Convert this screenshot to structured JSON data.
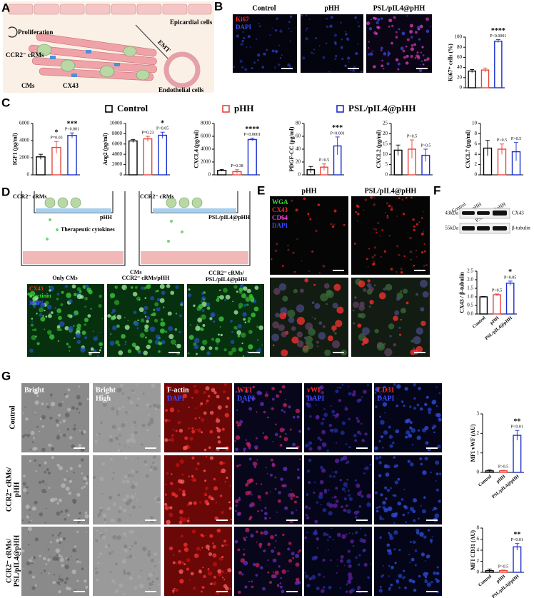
{
  "chart_data": [
    {
      "type": "bar",
      "ylabel": "Ki67⁺ cells (%)",
      "values": [
        33,
        35,
        92
      ],
      "errors": [
        3,
        4,
        3
      ],
      "colors": [
        "#000000",
        "#e8443a",
        "#1a2fd0"
      ],
      "ylim": [
        0,
        100
      ],
      "yticks": [
        0,
        20,
        40,
        60,
        80,
        100
      ],
      "stars": [
        null,
        null,
        "****"
      ],
      "p_labels": [
        null,
        null,
        "P<0.0001"
      ]
    },
    {
      "type": "bar",
      "ylabel": "IGF1 (pg/ml)",
      "values": [
        2100,
        3200,
        4600
      ],
      "errors": [
        300,
        700,
        300
      ],
      "colors": [
        "#000000",
        "#e8443a",
        "#1a2fd0"
      ],
      "ylim": [
        0,
        6000
      ],
      "yticks": [
        0,
        2000,
        4000,
        6000
      ],
      "stars": [
        null,
        "*",
        "***"
      ],
      "p_labels": [
        null,
        "P=0.03",
        "P<0.001"
      ]
    },
    {
      "type": "bar",
      "ylabel": "Ang2 (pg/ml)",
      "values": [
        6600,
        7000,
        7700
      ],
      "errors": [
        300,
        500,
        600
      ],
      "colors": [
        "#000000",
        "#e8443a",
        "#1a2fd0"
      ],
      "ylim": [
        0,
        10000
      ],
      "yticks": [
        0,
        2000,
        4000,
        6000,
        8000,
        10000
      ],
      "stars": [
        null,
        null,
        "*"
      ],
      "p_labels": [
        null,
        "P=0.23",
        "P<0.05"
      ]
    },
    {
      "type": "bar",
      "ylabel": "CXCL4 (pg/ml)",
      "values": [
        700,
        500,
        5500
      ],
      "errors": [
        150,
        300,
        200
      ],
      "colors": [
        "#000000",
        "#e8443a",
        "#1a2fd0"
      ],
      "ylim": [
        0,
        8000
      ],
      "yticks": [
        0,
        2000,
        4000,
        6000,
        8000
      ],
      "stars": [
        null,
        null,
        "****"
      ],
      "p_labels": [
        null,
        "P=0.38",
        "P<0.0001"
      ]
    },
    {
      "type": "bar",
      "ylabel": "PDGF-CC (pg/ml)",
      "values": [
        8,
        12,
        45
      ],
      "errors": [
        5,
        5,
        14
      ],
      "colors": [
        "#000000",
        "#e8443a",
        "#1a2fd0"
      ],
      "ylim": [
        0,
        80
      ],
      "yticks": [
        0,
        20,
        40,
        60,
        80
      ],
      "stars": [
        null,
        null,
        "***"
      ],
      "p_labels": [
        null,
        "P>0.5",
        "P<0.001"
      ]
    },
    {
      "type": "bar",
      "ylabel": "CXCL2 (pg/ml)",
      "values": [
        12,
        12.5,
        9.5
      ],
      "errors": [
        2.5,
        4.5,
        3
      ],
      "colors": [
        "#000000",
        "#e8443a",
        "#1a2fd0"
      ],
      "ylim": [
        0,
        25
      ],
      "yticks": [
        0,
        5,
        10,
        15,
        20,
        25
      ],
      "stars": [
        null,
        null,
        null
      ],
      "p_labels": [
        null,
        "P>0.5",
        "P>0.5"
      ]
    },
    {
      "type": "bar",
      "ylabel": "CXCL7 (pg/ml)",
      "values": [
        5.2,
        5,
        4.5
      ],
      "errors": [
        1.5,
        1,
        1.8
      ],
      "colors": [
        "#000000",
        "#e8443a",
        "#1a2fd0"
      ],
      "ylim": [
        0,
        10
      ],
      "yticks": [
        0,
        2,
        4,
        6,
        8,
        10
      ],
      "stars": [
        null,
        null,
        null
      ],
      "p_labels": [
        null,
        "P>0.5",
        "P>0.5"
      ]
    },
    {
      "type": "bar",
      "ylabel": "CX43 / β-tubulin",
      "categories": [
        "Control",
        "pHH",
        "PSL/pIL4@pHH"
      ],
      "values": [
        1.0,
        1.12,
        1.8
      ],
      "errors": [
        0.02,
        0.05,
        0.12
      ],
      "colors": [
        "#000000",
        "#e8443a",
        "#1a2fd0"
      ],
      "ylim": [
        0,
        2.5
      ],
      "yticks": [
        {
          "value": 0,
          "label": "0.0"
        },
        {
          "value": 0.5,
          "label": "0.5"
        },
        {
          "value": 1,
          "label": "1.0"
        },
        {
          "value": 1.5,
          "label": "1.5"
        },
        {
          "value": 2,
          "label": "2.0"
        },
        {
          "value": 2.5,
          "label": "2.5"
        }
      ],
      "stars": [
        null,
        null,
        "*"
      ],
      "p_labels": [
        null,
        "P>0.5",
        "P<0.05"
      ]
    },
    {
      "type": "bar",
      "ylabel": "MFI vWF (AU)",
      "categories": [
        "Control",
        "pHH",
        "PSL/pIL4@pHH"
      ],
      "values": [
        0.08,
        0.08,
        1.9
      ],
      "errors": [
        0.05,
        0.03,
        0.25
      ],
      "colors": [
        "#000000",
        "#e8443a",
        "#1a2fd0"
      ],
      "ylim": [
        0,
        3
      ],
      "yticks": [
        0,
        1,
        2,
        3
      ],
      "stars": [
        null,
        null,
        "**"
      ],
      "p_labels": [
        null,
        "P>0.5",
        "P<0.01"
      ]
    },
    {
      "type": "bar",
      "ylabel": "MFI CD31 (AU)",
      "categories": [
        "Control",
        "pHH",
        "PSL/pIL4@pHH"
      ],
      "values": [
        0.3,
        0.3,
        4.6
      ],
      "errors": [
        0.3,
        0.1,
        0.6
      ],
      "colors": [
        "#000000",
        "#e8443a",
        "#1a2fd0"
      ],
      "ylim": [
        0,
        8
      ],
      "yticks": [
        0,
        2,
        4,
        6,
        8
      ],
      "stars": [
        null,
        null,
        "**"
      ],
      "p_labels": [
        null,
        "P>0.5",
        "P<0.01"
      ]
    }
  ],
  "panels": {
    "A": {
      "label": "A",
      "epicardial": "Epicardial cells",
      "proliferation": "Proliferation",
      "crms": "CCR2⁻ cRMs",
      "emt": "EMT",
      "cms": "CMs",
      "cx43": "CX43",
      "endothelial": "Endothelial cells"
    },
    "B": {
      "label": "B",
      "columns": [
        "Control",
        "pHH",
        "PSL/pIL4@pHH"
      ],
      "stains": [
        "Ki67",
        "DAPI"
      ]
    },
    "C": {
      "label": "C",
      "legend": {
        "names": [
          "Control",
          "pHH",
          "PSL/pIL4@pHH"
        ],
        "colors": [
          "#000000",
          "#e8443a",
          "#1a2fd0"
        ]
      }
    },
    "D": {
      "label": "D",
      "crms": [
        "CCR2⁻ cRMs",
        "CCR2⁻ cRMs"
      ],
      "inserts": [
        "pHH",
        "PSL/pIL4@pHH"
      ],
      "cytokines": "Therapeutic cytokines",
      "cms": "CMs",
      "columns": [
        [
          "Only CMs"
        ],
        [
          "CCR2⁻ cRMs/pHH"
        ],
        [
          "CCR2⁻ cRMs/",
          "PSL/pIL4@pHH"
        ]
      ],
      "stains": [
        "CX43",
        "α-actinin",
        "DAPI"
      ]
    },
    "E": {
      "label": "E",
      "columns": [
        "pHH",
        "PSL/pIL4@pHH"
      ],
      "stains": [
        "WGA",
        "CX43",
        "CD64",
        "DAPI"
      ]
    },
    "F": {
      "label": "F",
      "lanes": [
        "Control",
        "pHH",
        "PSL/pIL4@pHH"
      ],
      "sizes": [
        "43kDa",
        "55kDa"
      ],
      "proteins": [
        "CX43",
        "β-tubulin"
      ]
    },
    "G": {
      "label": "G",
      "rows": [
        [
          "Control"
        ],
        [
          "CCR2⁻ cRMs/",
          "pHH"
        ],
        [
          "CCR2⁻ cRMs/",
          "PSL/pIL4@pHH"
        ]
      ],
      "columns": [
        [
          "Bright"
        ],
        [
          "Bright",
          "High"
        ],
        [
          "F-actin",
          "DAPI"
        ],
        [
          "WT1",
          "DAPI"
        ],
        [
          "vWF",
          "DAPI"
        ],
        [
          "CD31",
          "DAPI"
        ]
      ]
    }
  }
}
